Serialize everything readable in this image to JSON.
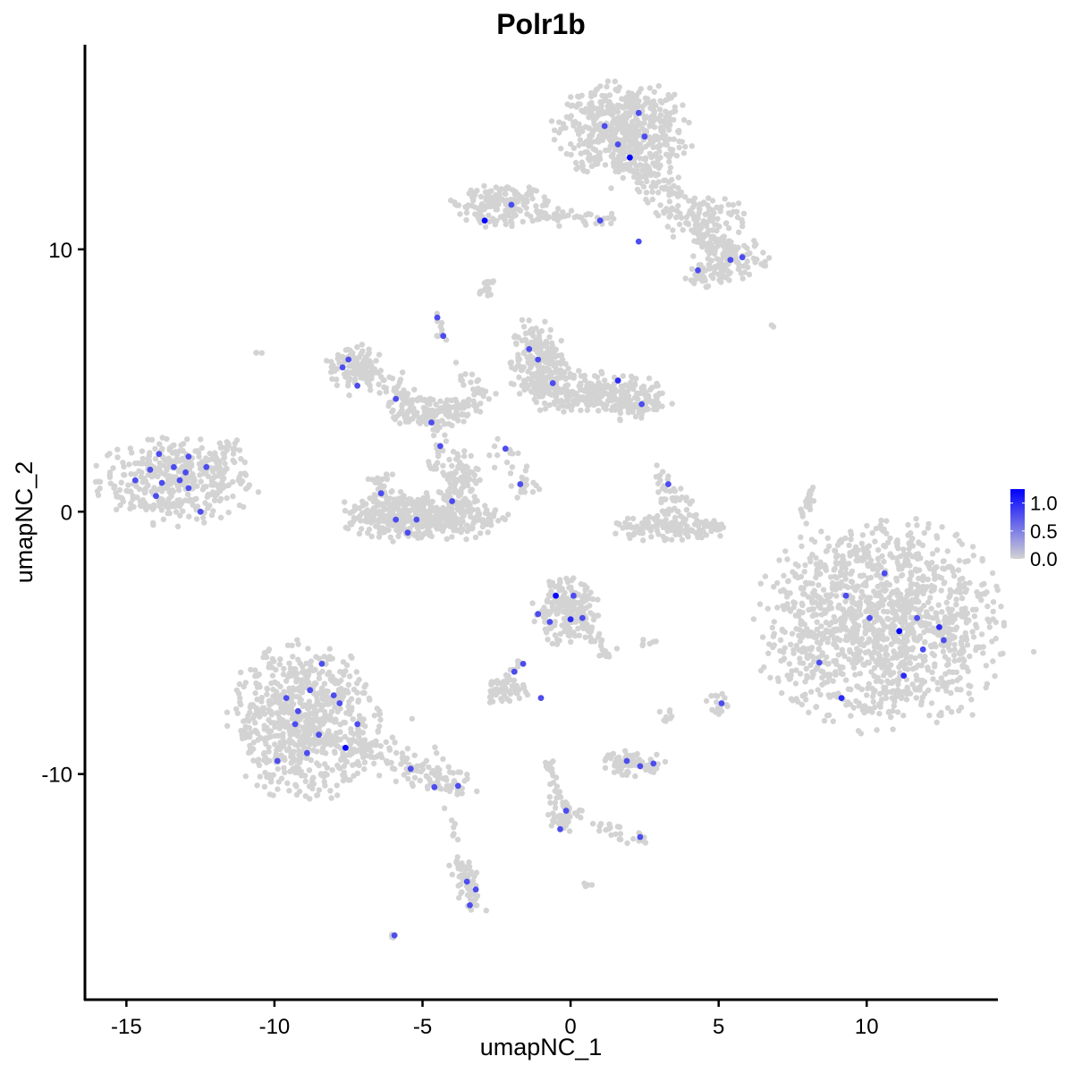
{
  "chart_data": {
    "type": "scatter",
    "title": "Polr1b",
    "xlabel": "umapNC_1",
    "ylabel": "umapNC_2",
    "xlim": [
      -16.4,
      14.4
    ],
    "ylim": [
      -18.6,
      17.8
    ],
    "xticks": [
      -15,
      -10,
      -5,
      0,
      5,
      10
    ],
    "yticks": [
      -10,
      0,
      10
    ],
    "grid": false,
    "legend": {
      "placement": "right",
      "type": "colorbar",
      "ticks": [
        "0.0",
        "0.5",
        "1.0"
      ],
      "range": [
        0,
        1.25
      ],
      "low_color": "#D3D3D3",
      "high_color": "#0000FF"
    },
    "background_cells": {
      "value": 0,
      "blobs": [
        {
          "x": -13.3,
          "y": 1.2,
          "sx": 1.3,
          "sy": 0.8,
          "n": 380
        },
        {
          "x": 1.75,
          "y": 14.5,
          "sx": 1.1,
          "sy": 0.9,
          "n": 520
        },
        {
          "x": -2.3,
          "y": 11.7,
          "sx": 0.9,
          "sy": 0.4,
          "n": 160
        },
        {
          "x": 5.5,
          "y": 9.7,
          "sx": 0.6,
          "sy": 0.4,
          "n": 90
        },
        {
          "x": 4.6,
          "y": 9.0,
          "sx": 0.4,
          "sy": 0.3,
          "n": 50
        },
        {
          "x": 4.8,
          "y": 11.3,
          "sx": 0.6,
          "sy": 0.4,
          "n": 60
        },
        {
          "x": -2.8,
          "y": 8.5,
          "sx": 0.15,
          "sy": 0.15,
          "n": 10
        },
        {
          "x": -7.3,
          "y": 5.5,
          "sx": 0.5,
          "sy": 0.5,
          "n": 90
        },
        {
          "x": -4.7,
          "y": 3.8,
          "sx": 0.8,
          "sy": 0.3,
          "n": 120
        },
        {
          "x": -5.0,
          "y": -0.2,
          "sx": 1.3,
          "sy": 0.45,
          "n": 420
        },
        {
          "x": -3.8,
          "y": 1.2,
          "sx": 0.35,
          "sy": 0.6,
          "n": 90
        },
        {
          "x": -6.3,
          "y": 0.6,
          "sx": 0.3,
          "sy": 0.5,
          "n": 50
        },
        {
          "x": -1.1,
          "y": 5.6,
          "sx": 0.45,
          "sy": 0.8,
          "n": 220
        },
        {
          "x": 1.9,
          "y": 4.3,
          "sx": 0.7,
          "sy": 0.4,
          "n": 170
        },
        {
          "x": 0.3,
          "y": 4.6,
          "sx": 0.7,
          "sy": 0.4,
          "n": 140
        },
        {
          "x": 3.4,
          "y": -0.6,
          "sx": 1.0,
          "sy": 0.25,
          "n": 140
        },
        {
          "x": 10.5,
          "y": -4.3,
          "sx": 2.0,
          "sy": 1.9,
          "n": 1300
        },
        {
          "x": -0.2,
          "y": -3.8,
          "sx": 0.55,
          "sy": 0.6,
          "n": 200
        },
        {
          "x": -9.0,
          "y": -8.0,
          "sx": 1.2,
          "sy": 1.4,
          "n": 700
        },
        {
          "x": -2.3,
          "y": -6.8,
          "sx": 0.4,
          "sy": 0.25,
          "n": 50
        },
        {
          "x": 2.1,
          "y": -9.6,
          "sx": 0.55,
          "sy": 0.22,
          "n": 70
        },
        {
          "x": 3.3,
          "y": -7.7,
          "sx": 0.15,
          "sy": 0.15,
          "n": 8
        },
        {
          "x": 5.0,
          "y": -7.3,
          "sx": 0.2,
          "sy": 0.3,
          "n": 15
        },
        {
          "x": -0.2,
          "y": -11.6,
          "sx": 0.3,
          "sy": 0.3,
          "n": 40
        },
        {
          "x": -5.9,
          "y": -16.1,
          "sx": 0.1,
          "sy": 0.1,
          "n": 4
        },
        {
          "x": -10.6,
          "y": 6.1,
          "sx": 0.08,
          "sy": 0.08,
          "n": 3
        },
        {
          "x": 6.8,
          "y": 7.1,
          "sx": 0.05,
          "sy": 0.05,
          "n": 2
        },
        {
          "x": 0.6,
          "y": -14.2,
          "sx": 0.1,
          "sy": 0.05,
          "n": 4
        },
        {
          "x": 2.7,
          "y": -5.0,
          "sx": 0.15,
          "sy": 0.1,
          "n": 6
        }
      ],
      "streaks": [
        {
          "x1": -12.3,
          "y1": 1.8,
          "x2": -11.4,
          "y2": 2.8,
          "w": 0.15,
          "n": 25
        },
        {
          "x1": -1.1,
          "y1": 11.3,
          "x2": 1.6,
          "y2": 11.1,
          "w": 0.12,
          "n": 40
        },
        {
          "x1": 2.0,
          "y1": 13.5,
          "x2": 4.4,
          "y2": 10.7,
          "w": 0.35,
          "n": 120
        },
        {
          "x1": 4.4,
          "y1": 10.7,
          "x2": 5.5,
          "y2": 9.7,
          "w": 0.25,
          "n": 40
        },
        {
          "x1": -4.5,
          "y1": 7.5,
          "x2": -4.2,
          "y2": 6.4,
          "w": 0.08,
          "n": 12
        },
        {
          "x1": -7.3,
          "y1": 5.5,
          "x2": -4.7,
          "y2": 3.9,
          "w": 0.25,
          "n": 70
        },
        {
          "x1": -4.2,
          "y1": 3.8,
          "x2": -2.9,
          "y2": 4.5,
          "w": 0.2,
          "n": 30
        },
        {
          "x1": -4.4,
          "y1": 3.4,
          "x2": -4.6,
          "y2": 1.4,
          "w": 0.12,
          "n": 20
        },
        {
          "x1": -3.6,
          "y1": 5.5,
          "x2": -3.2,
          "y2": 4.3,
          "w": 0.2,
          "n": 15
        },
        {
          "x1": -2.3,
          "y1": 2.4,
          "x2": -1.1,
          "y2": 0.6,
          "w": 0.25,
          "n": 30
        },
        {
          "x1": 3.0,
          "y1": 1.3,
          "x2": 3.8,
          "y2": -0.3,
          "w": 0.2,
          "n": 45
        },
        {
          "x1": 7.8,
          "y1": -0.3,
          "x2": 8.2,
          "y2": 1.0,
          "w": 0.08,
          "n": 20
        },
        {
          "x1": 0.3,
          "y1": -4.0,
          "x2": 1.3,
          "y2": -5.5,
          "w": 0.15,
          "n": 35
        },
        {
          "x1": -1.7,
          "y1": -5.7,
          "x2": -2.3,
          "y2": -6.6,
          "w": 0.08,
          "n": 12
        },
        {
          "x1": -7.6,
          "y1": -8.6,
          "x2": -3.8,
          "y2": -10.5,
          "w": 0.35,
          "n": 160
        },
        {
          "x1": -0.8,
          "y1": -9.5,
          "x2": -0.1,
          "y2": -11.8,
          "w": 0.12,
          "n": 40
        },
        {
          "x1": 1.0,
          "y1": -12.0,
          "x2": 2.5,
          "y2": -12.6,
          "w": 0.15,
          "n": 25
        },
        {
          "x1": -3.7,
          "y1": -13.5,
          "x2": -3.3,
          "y2": -15.2,
          "w": 0.2,
          "n": 55
        },
        {
          "x1": -3.9,
          "y1": -11.7,
          "x2": -3.9,
          "y2": -12.5,
          "w": 0.05,
          "n": 6
        },
        {
          "x1": -2.7,
          "y1": 8.8,
          "x2": -3.0,
          "y2": 8.2,
          "w": 0.1,
          "n": 10
        }
      ]
    },
    "expressing_cells": [
      {
        "x": -14.7,
        "y": 1.2,
        "v": 0.8
      },
      {
        "x": -14.2,
        "y": 1.6,
        "v": 0.8
      },
      {
        "x": -13.8,
        "y": 1.1,
        "v": 0.8
      },
      {
        "x": -13.4,
        "y": 1.7,
        "v": 0.8
      },
      {
        "x": -12.9,
        "y": 2.1,
        "v": 0.8
      },
      {
        "x": -12.9,
        "y": 0.9,
        "v": 0.8
      },
      {
        "x": -13.9,
        "y": 2.2,
        "v": 0.8
      },
      {
        "x": -12.3,
        "y": 1.7,
        "v": 0.8
      },
      {
        "x": -12.5,
        "y": 0.0,
        "v": 0.8
      },
      {
        "x": -13.2,
        "y": 1.2,
        "v": 0.8
      },
      {
        "x": -14.0,
        "y": 0.6,
        "v": 0.8
      },
      {
        "x": -13.0,
        "y": 1.5,
        "v": 0.8
      },
      {
        "x": 1.15,
        "y": 14.7,
        "v": 0.8
      },
      {
        "x": 1.6,
        "y": 14.0,
        "v": 0.8
      },
      {
        "x": 2.0,
        "y": 13.5,
        "v": 1.2
      },
      {
        "x": 2.3,
        "y": 15.2,
        "v": 0.8
      },
      {
        "x": 2.5,
        "y": 14.3,
        "v": 0.8
      },
      {
        "x": -2.9,
        "y": 11.1,
        "v": 1.2
      },
      {
        "x": -2.0,
        "y": 11.7,
        "v": 0.8
      },
      {
        "x": 1.0,
        "y": 11.1,
        "v": 0.8
      },
      {
        "x": 2.3,
        "y": 10.3,
        "v": 0.8
      },
      {
        "x": 5.4,
        "y": 9.6,
        "v": 0.8
      },
      {
        "x": 5.8,
        "y": 9.7,
        "v": 0.8
      },
      {
        "x": 4.3,
        "y": 9.2,
        "v": 0.8
      },
      {
        "x": -4.5,
        "y": 7.4,
        "v": 0.8
      },
      {
        "x": -4.3,
        "y": 6.7,
        "v": 0.8
      },
      {
        "x": -7.7,
        "y": 5.5,
        "v": 0.8
      },
      {
        "x": -7.5,
        "y": 5.8,
        "v": 0.8
      },
      {
        "x": -7.2,
        "y": 4.8,
        "v": 0.8
      },
      {
        "x": -5.9,
        "y": 4.3,
        "v": 0.8
      },
      {
        "x": -4.7,
        "y": 3.4,
        "v": 0.8
      },
      {
        "x": -4.4,
        "y": 2.5,
        "v": 0.8
      },
      {
        "x": -1.4,
        "y": 6.2,
        "v": 0.8
      },
      {
        "x": -1.1,
        "y": 5.8,
        "v": 0.8
      },
      {
        "x": -0.6,
        "y": 4.9,
        "v": 0.8
      },
      {
        "x": 1.6,
        "y": 5.0,
        "v": 1.0
      },
      {
        "x": 2.4,
        "y": 4.1,
        "v": 0.8
      },
      {
        "x": -2.2,
        "y": 2.4,
        "v": 0.8
      },
      {
        "x": -1.7,
        "y": 1.05,
        "v": 0.8
      },
      {
        "x": -6.4,
        "y": 0.7,
        "v": 0.8
      },
      {
        "x": -5.9,
        "y": -0.3,
        "v": 0.8
      },
      {
        "x": -5.2,
        "y": -0.3,
        "v": 0.8
      },
      {
        "x": -5.5,
        "y": -0.8,
        "v": 0.8
      },
      {
        "x": -4.0,
        "y": 0.4,
        "v": 0.8
      },
      {
        "x": 3.3,
        "y": 1.05,
        "v": 0.8
      },
      {
        "x": -0.5,
        "y": -3.2,
        "v": 1.2
      },
      {
        "x": -1.1,
        "y": -3.9,
        "v": 0.8
      },
      {
        "x": -0.7,
        "y": -4.2,
        "v": 0.8
      },
      {
        "x": 0.1,
        "y": -3.2,
        "v": 0.8
      },
      {
        "x": 0.4,
        "y": -4.05,
        "v": 0.8
      },
      {
        "x": 0.0,
        "y": -4.1,
        "v": 1.0
      },
      {
        "x": -1.6,
        "y": -5.8,
        "v": 0.8
      },
      {
        "x": -1.9,
        "y": -6.1,
        "v": 0.8
      },
      {
        "x": -1.0,
        "y": -7.1,
        "v": 0.8
      },
      {
        "x": -0.15,
        "y": -11.4,
        "v": 0.8
      },
      {
        "x": -0.35,
        "y": -12.1,
        "v": 0.8
      },
      {
        "x": 2.35,
        "y": -12.4,
        "v": 0.8
      },
      {
        "x": 1.9,
        "y": -9.5,
        "v": 0.8
      },
      {
        "x": 2.35,
        "y": -9.7,
        "v": 0.8
      },
      {
        "x": 2.8,
        "y": -9.6,
        "v": 0.8
      },
      {
        "x": -3.5,
        "y": -14.1,
        "v": 0.8
      },
      {
        "x": -3.4,
        "y": -15.0,
        "v": 0.8
      },
      {
        "x": -3.2,
        "y": -14.4,
        "v": 0.8
      },
      {
        "x": 5.1,
        "y": -7.3,
        "v": 0.8
      },
      {
        "x": -9.6,
        "y": -7.1,
        "v": 0.8
      },
      {
        "x": -8.8,
        "y": -6.8,
        "v": 0.8
      },
      {
        "x": -8.4,
        "y": -5.8,
        "v": 0.8
      },
      {
        "x": -8.0,
        "y": -7.0,
        "v": 0.8
      },
      {
        "x": -7.8,
        "y": -7.3,
        "v": 0.8
      },
      {
        "x": -9.3,
        "y": -8.1,
        "v": 0.8
      },
      {
        "x": -8.5,
        "y": -8.5,
        "v": 0.8
      },
      {
        "x": -7.6,
        "y": -9.0,
        "v": 1.2
      },
      {
        "x": -9.9,
        "y": -9.5,
        "v": 0.8
      },
      {
        "x": -8.9,
        "y": -9.2,
        "v": 0.8
      },
      {
        "x": -7.2,
        "y": -8.1,
        "v": 0.8
      },
      {
        "x": -5.4,
        "y": -9.8,
        "v": 0.8
      },
      {
        "x": -4.6,
        "y": -10.5,
        "v": 0.8
      },
      {
        "x": -3.8,
        "y": -10.45,
        "v": 0.8
      },
      {
        "x": -5.95,
        "y": -16.15,
        "v": 0.8
      },
      {
        "x": -9.2,
        "y": -7.6,
        "v": 0.8
      },
      {
        "x": 9.3,
        "y": -3.2,
        "v": 0.8
      },
      {
        "x": 10.6,
        "y": -2.35,
        "v": 0.8
      },
      {
        "x": 11.1,
        "y": -4.55,
        "v": 1.25
      },
      {
        "x": 11.9,
        "y": -5.25,
        "v": 0.8
      },
      {
        "x": 10.1,
        "y": -4.05,
        "v": 0.8
      },
      {
        "x": 12.45,
        "y": -4.4,
        "v": 1.0
      },
      {
        "x": 12.6,
        "y": -4.9,
        "v": 0.8
      },
      {
        "x": 9.15,
        "y": -7.1,
        "v": 1.0
      },
      {
        "x": 11.25,
        "y": -6.25,
        "v": 1.0
      },
      {
        "x": 8.4,
        "y": -5.75,
        "v": 0.8
      },
      {
        "x": 11.7,
        "y": -4.05,
        "v": 0.8
      }
    ]
  }
}
